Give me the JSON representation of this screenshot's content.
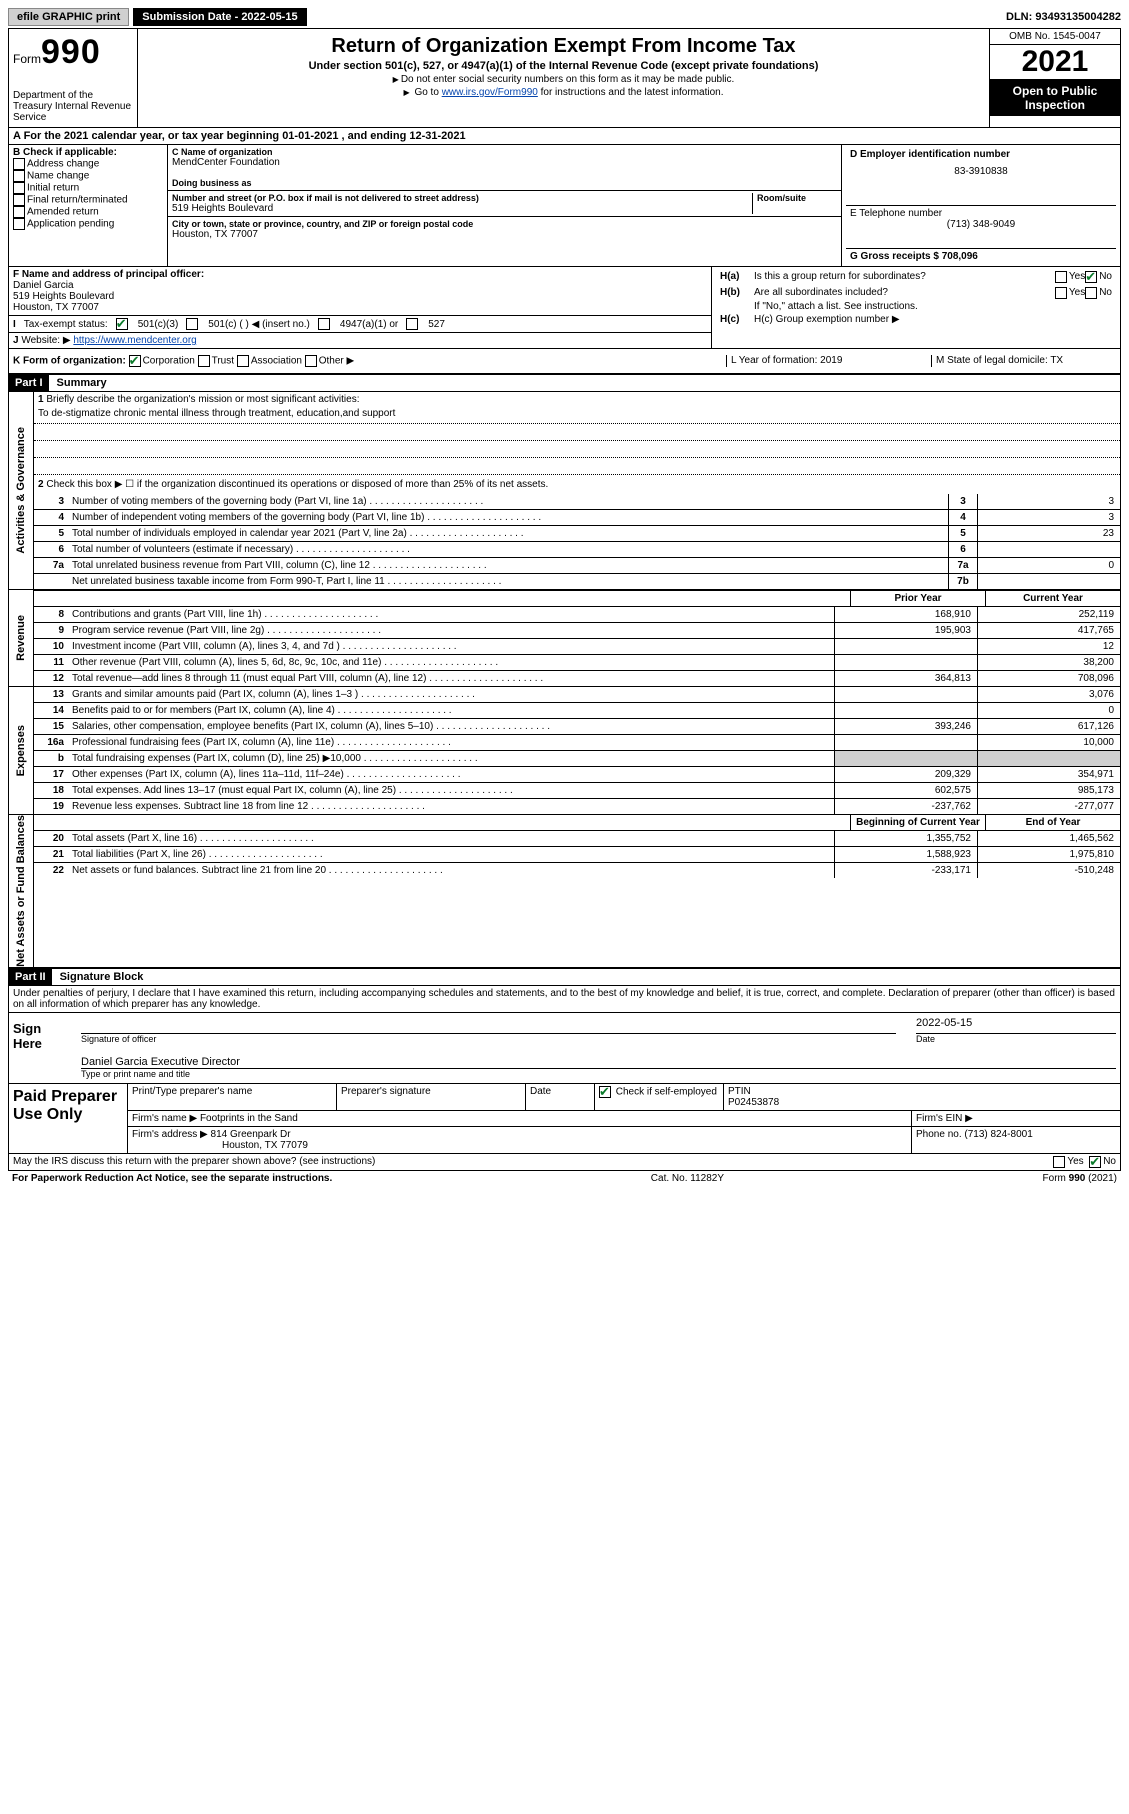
{
  "topbar": {
    "efile": "efile GRAPHIC print",
    "sub_label": "Submission Date - 2022-05-15",
    "dln": "DLN: 93493135004282"
  },
  "header": {
    "form_word": "Form",
    "form_num": "990",
    "title": "Return of Organization Exempt From Income Tax",
    "subtitle": "Under section 501(c), 527, or 4947(a)(1) of the Internal Revenue Code (except private foundations)",
    "line1": "Do not enter social security numbers on this form as it may be made public.",
    "line2_a": "Go to ",
    "line2_link": "www.irs.gov/Form990",
    "line2_b": " for instructions and the latest information.",
    "omb": "OMB No. 1545-0047",
    "year": "2021",
    "open": "Open to Public Inspection",
    "dept": "Department of the Treasury Internal Revenue Service"
  },
  "section_a": {
    "a_line": "A For the 2021 calendar year, or tax year beginning 01-01-2021   , and ending 12-31-2021",
    "b_label": "B Check if applicable:",
    "b_items": [
      "Address change",
      "Name change",
      "Initial return",
      "Final return/terminated",
      "Amended return",
      "Application pending"
    ],
    "c_label": "C Name of organization",
    "org_name": "MendCenter Foundation",
    "dba_label": "Doing business as",
    "addr_label": "Number and street (or P.O. box if mail is not delivered to street address)",
    "room_label": "Room/suite",
    "addr": "519 Heights Boulevard",
    "city_label": "City or town, state or province, country, and ZIP or foreign postal code",
    "city": "Houston, TX  77007",
    "d_label": "D Employer identification number",
    "ein": "83-3910838",
    "e_label": "E Telephone number",
    "phone": "(713) 348-9049",
    "g_label": "G Gross receipts $ 708,096",
    "f_label": "F  Name and address of principal officer:",
    "officer_name": "Daniel Garcia",
    "officer_addr1": "519 Heights Boulevard",
    "officer_addr2": "Houston, TX  77007",
    "i_label": "Tax-exempt status:",
    "i_501c3": "501(c)(3)",
    "i_501c": "501(c) (  ) ◀ (insert no.)",
    "i_4947": "4947(a)(1) or",
    "i_527": "527",
    "j_label": "Website: ▶",
    "website": "https://www.mendcenter.org",
    "k_label": "K Form of organization:",
    "k_opts": [
      "Corporation",
      "Trust",
      "Association",
      "Other ▶"
    ],
    "ha_label": "H(a)  Is this a group return for subordinates?",
    "hb_label": "H(b)  Are all subordinates included?",
    "hb_note": "If \"No,\" attach a list. See instructions.",
    "hc_label": "H(c)  Group exemption number ▶",
    "yes": "Yes",
    "no": "No",
    "l_label": "L Year of formation: 2019",
    "m_label": "M State of legal domicile: TX"
  },
  "part1": {
    "label": "Part I",
    "title": "Summary",
    "l1": "Briefly describe the organization's mission or most significant activities:",
    "mission": "To de-stigmatize chronic mental illness through treatment, education,and support",
    "l2": "Check this box ▶ ☐  if the organization discontinued its operations or disposed of more than 25% of its net assets.",
    "rows_gov": [
      {
        "n": "3",
        "d": "Number of voting members of the governing body (Part VI, line 1a)",
        "b": "3",
        "v": "3"
      },
      {
        "n": "4",
        "d": "Number of independent voting members of the governing body (Part VI, line 1b)",
        "b": "4",
        "v": "3"
      },
      {
        "n": "5",
        "d": "Total number of individuals employed in calendar year 2021 (Part V, line 2a)",
        "b": "5",
        "v": "23"
      },
      {
        "n": "6",
        "d": "Total number of volunteers (estimate if necessary)",
        "b": "6",
        "v": ""
      },
      {
        "n": "7a",
        "d": "Total unrelated business revenue from Part VIII, column (C), line 12",
        "b": "7a",
        "v": "0"
      },
      {
        "n": "",
        "d": "Net unrelated business taxable income from Form 990-T, Part I, line 11",
        "b": "7b",
        "v": ""
      }
    ],
    "col_prior": "Prior Year",
    "col_current": "Current Year",
    "rows_rev": [
      {
        "n": "8",
        "d": "Contributions and grants (Part VIII, line 1h)",
        "p": "168,910",
        "c": "252,119"
      },
      {
        "n": "9",
        "d": "Program service revenue (Part VIII, line 2g)",
        "p": "195,903",
        "c": "417,765"
      },
      {
        "n": "10",
        "d": "Investment income (Part VIII, column (A), lines 3, 4, and 7d )",
        "p": "",
        "c": "12"
      },
      {
        "n": "11",
        "d": "Other revenue (Part VIII, column (A), lines 5, 6d, 8c, 9c, 10c, and 11e)",
        "p": "",
        "c": "38,200"
      },
      {
        "n": "12",
        "d": "Total revenue—add lines 8 through 11 (must equal Part VIII, column (A), line 12)",
        "p": "364,813",
        "c": "708,096"
      }
    ],
    "rows_exp": [
      {
        "n": "13",
        "d": "Grants and similar amounts paid (Part IX, column (A), lines 1–3 )",
        "p": "",
        "c": "3,076"
      },
      {
        "n": "14",
        "d": "Benefits paid to or for members (Part IX, column (A), line 4)",
        "p": "",
        "c": "0"
      },
      {
        "n": "15",
        "d": "Salaries, other compensation, employee benefits (Part IX, column (A), lines 5–10)",
        "p": "393,246",
        "c": "617,126"
      },
      {
        "n": "16a",
        "d": "Professional fundraising fees (Part IX, column (A), line 11e)",
        "p": "",
        "c": "10,000"
      },
      {
        "n": "b",
        "d": "Total fundraising expenses (Part IX, column (D), line 25) ▶10,000",
        "p": "shade",
        "c": "shade"
      },
      {
        "n": "17",
        "d": "Other expenses (Part IX, column (A), lines 11a–11d, 11f–24e)",
        "p": "209,329",
        "c": "354,971"
      },
      {
        "n": "18",
        "d": "Total expenses. Add lines 13–17 (must equal Part IX, column (A), line 25)",
        "p": "602,575",
        "c": "985,173"
      },
      {
        "n": "19",
        "d": "Revenue less expenses. Subtract line 18 from line 12",
        "p": "-237,762",
        "c": "-277,077"
      }
    ],
    "col_begin": "Beginning of Current Year",
    "col_end": "End of Year",
    "rows_net": [
      {
        "n": "20",
        "d": "Total assets (Part X, line 16)",
        "p": "1,355,752",
        "c": "1,465,562"
      },
      {
        "n": "21",
        "d": "Total liabilities (Part X, line 26)",
        "p": "1,588,923",
        "c": "1,975,810"
      },
      {
        "n": "22",
        "d": "Net assets or fund balances. Subtract line 21 from line 20",
        "p": "-233,171",
        "c": "-510,248"
      }
    ]
  },
  "part2": {
    "label": "Part II",
    "title": "Signature Block",
    "decl": "Under penalties of perjury, I declare that I have examined this return, including accompanying schedules and statements, and to the best of my knowledge and belief, it is true, correct, and complete. Declaration of preparer (other than officer) is based on all information of which preparer has any knowledge.",
    "sign_here": "Sign Here",
    "sig_officer": "Signature of officer",
    "sig_date": "Date",
    "sig_date_val": "2022-05-15",
    "sig_name": "Daniel Garcia  Executive Director",
    "sig_name_label": "Type or print name and title",
    "paid": "Paid Preparer Use Only",
    "pp_name_label": "Print/Type preparer's name",
    "pp_sig_label": "Preparer's signature",
    "pp_date": "Date",
    "pp_check": "Check ☑ if self-employed",
    "ptin_label": "PTIN",
    "ptin": "P02453878",
    "firm_name_label": "Firm's name    ▶",
    "firm_name": "Footprints in the Sand",
    "firm_ein_label": "Firm's EIN ▶",
    "firm_addr_label": "Firm's address ▶",
    "firm_addr": "814 Greenpark Dr",
    "firm_city": "Houston, TX  77079",
    "firm_phone_label": "Phone no. (713) 824-8001",
    "discuss": "May the IRS discuss this return with the preparer shown above? (see instructions)"
  },
  "footer": {
    "left": "For Paperwork Reduction Act Notice, see the separate instructions.",
    "mid": "Cat. No. 11282Y",
    "right": "Form 990 (2021)"
  },
  "vlabels": {
    "gov": "Activities & Governance",
    "rev": "Revenue",
    "exp": "Expenses",
    "net": "Net Assets or Fund Balances"
  }
}
